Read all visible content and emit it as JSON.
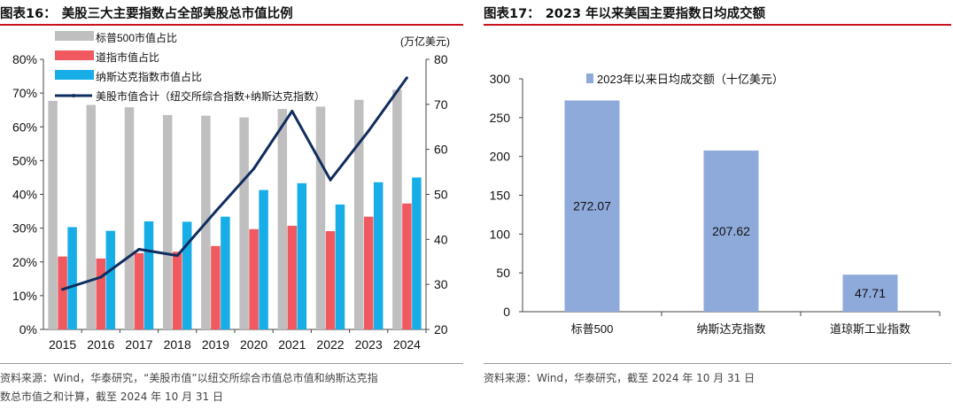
{
  "charts": [
    {
      "label": "图表16：",
      "title": "美股三大主要指数占全部美股总市值比例",
      "source_lines": [
        "资料来源：Wind，华泰研究，“美股市值”以纽交所综合市值总市值和纳斯达克指",
        "数总市值之和计算，截至 2024 年 10 月 31 日"
      ],
      "right_axis_unit": "(万亿美元)"
    },
    {
      "label": "图表17：",
      "title": "2023 年以来美国主要指数日均成交额",
      "source_lines": [
        "资料来源：Wind，华泰研究，截至 2024 年 10 月 31 日"
      ]
    }
  ],
  "chart_data": [
    {
      "type": "bar",
      "categories": [
        "2015",
        "2016",
        "2017",
        "2018",
        "2019",
        "2020",
        "2021",
        "2022",
        "2023",
        "2024"
      ],
      "y_ticks": [
        "0%",
        "10%",
        "20%",
        "30%",
        "40%",
        "50%",
        "60%",
        "70%",
        "80%"
      ],
      "y2_ticks": [
        "20",
        "30",
        "40",
        "50",
        "60",
        "70",
        "80"
      ],
      "ylim": [
        0,
        80
      ],
      "y2lim": [
        20,
        80
      ],
      "series": [
        {
          "name": "标普500市值占比",
          "kind": "bar",
          "axis": "left",
          "color": "#bfbfbf",
          "values": [
            67.7,
            66.5,
            65.8,
            63.5,
            63.3,
            62.8,
            65.3,
            66.0,
            68.0,
            71.0
          ]
        },
        {
          "name": "道指市值占比",
          "kind": "bar",
          "axis": "left",
          "color": "#f0595f",
          "values": [
            21.6,
            21.0,
            22.6,
            23.0,
            24.7,
            29.7,
            30.7,
            29.1,
            33.4,
            37.3
          ]
        },
        {
          "name": "纳斯达克指数市值占比",
          "kind": "bar",
          "axis": "left",
          "color": "#17aee8",
          "values": [
            30.3,
            29.2,
            32.0,
            31.9,
            33.4,
            41.3,
            43.3,
            37.0,
            43.6,
            45.0
          ]
        },
        {
          "name": "美股市值合计（纽交所综合指数+纳斯达克指数）",
          "kind": "line",
          "axis": "right",
          "color": "#0f2d5e",
          "values": [
            28.9,
            31.6,
            37.8,
            36.4,
            46.2,
            55.7,
            68.5,
            53.2,
            64.1,
            75.9
          ]
        }
      ]
    },
    {
      "type": "bar",
      "categories": [
        "标普500",
        "纳斯达克指数",
        "道琼斯工业指数"
      ],
      "values": [
        272.07,
        207.62,
        47.71
      ],
      "value_labels": [
        "272.07",
        "207.62",
        "47.71"
      ],
      "legend": "2023年以来日均成交额（十亿美元）",
      "y_ticks": [
        "0",
        "50",
        "100",
        "150",
        "200",
        "250",
        "300"
      ],
      "ylim": [
        0,
        300
      ],
      "color": "#8eaadb"
    }
  ]
}
